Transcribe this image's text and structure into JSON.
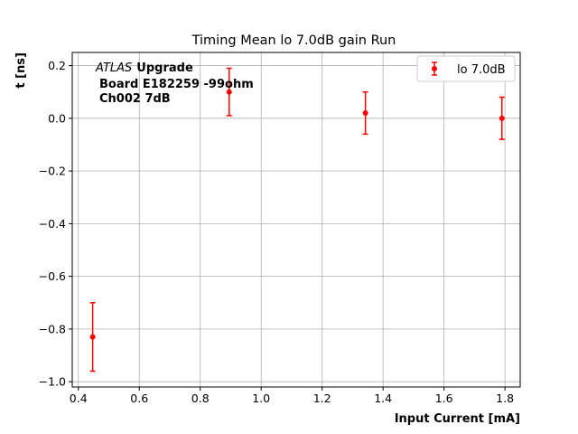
{
  "chart_data": {
    "type": "scatter",
    "title": "Timing Mean lo 7.0dB gain Run",
    "xlabel": "Input Current [mA]",
    "ylabel": "t [ns]",
    "xlim": [
      0.38,
      1.85
    ],
    "ylim": [
      -1.02,
      0.25
    ],
    "xticks": [
      "0.4",
      "0.6",
      "0.8",
      "1.0",
      "1.2",
      "1.4",
      "1.6",
      "1.8"
    ],
    "yticks": [
      "0.2",
      "0.0",
      "−0.2",
      "−0.4",
      "−0.6",
      "−0.8",
      "−1.0"
    ],
    "grid": true,
    "legend_position": "top-right",
    "annotation": {
      "atlas": "ATLAS",
      "upgrade": "Upgrade",
      "line2": "Board E182259 -99ohm",
      "line3": "Ch002 7dB"
    },
    "series": [
      {
        "name": "lo 7.0dB",
        "color": "#ff0000",
        "x": [
          0.447,
          0.895,
          1.342,
          1.79
        ],
        "y": [
          -0.83,
          0.1,
          0.02,
          0.0
        ],
        "yerr": [
          0.13,
          0.09,
          0.08,
          0.08
        ]
      }
    ]
  }
}
